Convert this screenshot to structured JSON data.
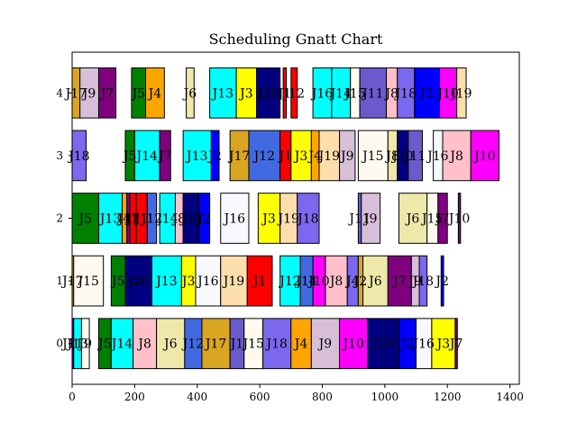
{
  "chart_data": {
    "type": "bar",
    "subtype": "gantt",
    "title": "Scheduling Gnatt Chart",
    "xlabel": "",
    "ylabel": "",
    "xlim": [
      0,
      1430
    ],
    "ylim": [
      -0.65,
      4.65
    ],
    "xticks": [
      0,
      200,
      400,
      600,
      800,
      1000,
      1200,
      1400
    ],
    "yticks": [
      0,
      1,
      2,
      3,
      4
    ],
    "grid": false,
    "legend": "none",
    "colors": {
      "green": "#008000",
      "cyan": "#00ffff",
      "pink": "#ffc0cb",
      "khaki": "#eee8aa",
      "royalblue": "#4169e1",
      "goldenrod": "#daa520",
      "slateblue": "#6a5acd",
      "ivory": "#fffaf0",
      "mediumslateblue": "#7b68ee",
      "orange": "#ffa500",
      "thistle": "#d8bfd8",
      "magenta": "#ff00ff",
      "navy": "#000080",
      "blue": "#0000ff",
      "ghostwhite": "#f8f8ff",
      "yellow": "#ffff00",
      "purple": "#800080",
      "red": "#ff0000",
      "wheat": "#ffdead"
    },
    "tasks": [
      {
        "machine": 0,
        "label": "J11",
        "start": 0,
        "end": 5,
        "color": "#800080"
      },
      {
        "machine": 0,
        "label": "J13",
        "start": 5,
        "end": 30,
        "color": "#00ffff"
      },
      {
        "machine": 0,
        "label": "J9",
        "start": 30,
        "end": 55,
        "color": "#fffaf0"
      },
      {
        "machine": 0,
        "label": "J5",
        "start": 85,
        "end": 125,
        "color": "#008000"
      },
      {
        "machine": 0,
        "label": "J14",
        "start": 125,
        "end": 195,
        "color": "#00ffff"
      },
      {
        "machine": 0,
        "label": "J8",
        "start": 195,
        "end": 270,
        "color": "#ffc0cb"
      },
      {
        "machine": 0,
        "label": "J6",
        "start": 270,
        "end": 360,
        "color": "#eee8aa"
      },
      {
        "machine": 0,
        "label": "J12",
        "start": 360,
        "end": 415,
        "color": "#4169e1"
      },
      {
        "machine": 0,
        "label": "J17",
        "start": 415,
        "end": 505,
        "color": "#daa520"
      },
      {
        "machine": 0,
        "label": "J1",
        "start": 505,
        "end": 550,
        "color": "#6a5acd"
      },
      {
        "machine": 0,
        "label": "J15",
        "start": 550,
        "end": 610,
        "color": "#fffaf0"
      },
      {
        "machine": 0,
        "label": "J18",
        "start": 610,
        "end": 700,
        "color": "#7b68ee"
      },
      {
        "machine": 0,
        "label": "J4",
        "start": 700,
        "end": 765,
        "color": "#ffa500"
      },
      {
        "machine": 0,
        "label": "J9",
        "start": 765,
        "end": 855,
        "color": "#d8bfd8"
      },
      {
        "machine": 0,
        "label": "J10",
        "start": 855,
        "end": 945,
        "color": "#ff00ff"
      },
      {
        "machine": 0,
        "label": "J20",
        "start": 945,
        "end": 1045,
        "color": "#000080"
      },
      {
        "machine": 0,
        "label": "J2",
        "start": 1045,
        "end": 1100,
        "color": "#0000ff"
      },
      {
        "machine": 0,
        "label": "J16",
        "start": 1100,
        "end": 1150,
        "color": "#f8f8ff"
      },
      {
        "machine": 0,
        "label": "J3",
        "start": 1150,
        "end": 1225,
        "color": "#ffff00"
      },
      {
        "machine": 0,
        "label": "J7",
        "start": 1225,
        "end": 1232,
        "color": "#800080"
      },
      {
        "machine": 1,
        "label": "J17",
        "start": 0,
        "end": 5,
        "color": "#daa520"
      },
      {
        "machine": 1,
        "label": "J15",
        "start": 5,
        "end": 100,
        "color": "#fffaf0"
      },
      {
        "machine": 1,
        "label": "J5",
        "start": 125,
        "end": 170,
        "color": "#008000"
      },
      {
        "machine": 1,
        "label": "J20",
        "start": 170,
        "end": 255,
        "color": "#000080"
      },
      {
        "machine": 1,
        "label": "J13",
        "start": 255,
        "end": 350,
        "color": "#00ffff"
      },
      {
        "machine": 1,
        "label": "J3",
        "start": 350,
        "end": 395,
        "color": "#ffff00"
      },
      {
        "machine": 1,
        "label": "J16",
        "start": 395,
        "end": 475,
        "color": "#f8f8ff"
      },
      {
        "machine": 1,
        "label": "J19",
        "start": 475,
        "end": 560,
        "color": "#ffdead"
      },
      {
        "machine": 1,
        "label": "J1",
        "start": 560,
        "end": 640,
        "color": "#ff0000"
      },
      {
        "machine": 1,
        "label": "J12",
        "start": 665,
        "end": 730,
        "color": "#00ffff"
      },
      {
        "machine": 1,
        "label": "J14",
        "start": 730,
        "end": 770,
        "color": "#4169e1"
      },
      {
        "machine": 1,
        "label": "J10",
        "start": 770,
        "end": 810,
        "color": "#ff00ff"
      },
      {
        "machine": 1,
        "label": "J8",
        "start": 810,
        "end": 880,
        "color": "#ffc0cb"
      },
      {
        "machine": 1,
        "label": "J4",
        "start": 880,
        "end": 915,
        "color": "#7b68ee"
      },
      {
        "machine": 1,
        "label": "J2",
        "start": 915,
        "end": 930,
        "color": "#daa520"
      },
      {
        "machine": 1,
        "label": "J6",
        "start": 930,
        "end": 1010,
        "color": "#eee8aa"
      },
      {
        "machine": 1,
        "label": "J7",
        "start": 1010,
        "end": 1085,
        "color": "#800080"
      },
      {
        "machine": 1,
        "label": "J9",
        "start": 1085,
        "end": 1110,
        "color": "#d8bfd8"
      },
      {
        "machine": 1,
        "label": "J18",
        "start": 1110,
        "end": 1135,
        "color": "#7b68ee"
      },
      {
        "machine": 1,
        "label": "J2",
        "start": 1180,
        "end": 1188,
        "color": "#0000ff"
      },
      {
        "machine": 2,
        "label": "J5",
        "start": 0,
        "end": 85,
        "color": "#008000"
      },
      {
        "machine": 2,
        "label": "J13",
        "start": 85,
        "end": 160,
        "color": "#00ffff"
      },
      {
        "machine": 2,
        "label": "J4",
        "start": 160,
        "end": 175,
        "color": "#ffa500"
      },
      {
        "machine": 2,
        "label": "J11",
        "start": 175,
        "end": 185,
        "color": "#800080"
      },
      {
        "machine": 2,
        "label": "J7",
        "start": 185,
        "end": 205,
        "color": "#ff0000"
      },
      {
        "machine": 2,
        "label": "J1",
        "start": 205,
        "end": 240,
        "color": "#ff0000"
      },
      {
        "machine": 2,
        "label": "J12",
        "start": 240,
        "end": 270,
        "color": "#4169e1"
      },
      {
        "machine": 2,
        "label": "J14",
        "start": 280,
        "end": 330,
        "color": "#00ffff"
      },
      {
        "machine": 2,
        "label": "J8",
        "start": 330,
        "end": 355,
        "color": "#ffc0cb"
      },
      {
        "machine": 2,
        "label": "J20",
        "start": 355,
        "end": 405,
        "color": "#000080"
      },
      {
        "machine": 2,
        "label": "J2",
        "start": 405,
        "end": 440,
        "color": "#0000ff"
      },
      {
        "machine": 2,
        "label": "J16",
        "start": 475,
        "end": 565,
        "color": "#f8f8ff"
      },
      {
        "machine": 2,
        "label": "J3",
        "start": 595,
        "end": 665,
        "color": "#ffff00"
      },
      {
        "machine": 2,
        "label": "J19",
        "start": 665,
        "end": 720,
        "color": "#ffdead"
      },
      {
        "machine": 2,
        "label": "J18",
        "start": 720,
        "end": 790,
        "color": "#7b68ee"
      },
      {
        "machine": 2,
        "label": "J11",
        "start": 915,
        "end": 925,
        "color": "#6a5acd"
      },
      {
        "machine": 2,
        "label": "J9",
        "start": 925,
        "end": 985,
        "color": "#d8bfd8"
      },
      {
        "machine": 2,
        "label": "J6",
        "start": 1045,
        "end": 1135,
        "color": "#eee8aa"
      },
      {
        "machine": 2,
        "label": "J15",
        "start": 1135,
        "end": 1170,
        "color": "#fffaf0"
      },
      {
        "machine": 2,
        "label": "J7",
        "start": 1170,
        "end": 1200,
        "color": "#800080"
      },
      {
        "machine": 2,
        "label": "J10",
        "start": 1235,
        "end": 1242,
        "color": "#800080"
      },
      {
        "machine": 3,
        "label": "J18",
        "start": 0,
        "end": 45,
        "color": "#7b68ee"
      },
      {
        "machine": 3,
        "label": "J5",
        "start": 170,
        "end": 200,
        "color": "#008000"
      },
      {
        "machine": 3,
        "label": "J14",
        "start": 200,
        "end": 280,
        "color": "#00ffff"
      },
      {
        "machine": 3,
        "label": "J7",
        "start": 280,
        "end": 315,
        "color": "#800080"
      },
      {
        "machine": 3,
        "label": "J13",
        "start": 355,
        "end": 445,
        "color": "#00ffff"
      },
      {
        "machine": 3,
        "label": "J2",
        "start": 445,
        "end": 470,
        "color": "#0000ff"
      },
      {
        "machine": 3,
        "label": "J17",
        "start": 505,
        "end": 565,
        "color": "#daa520"
      },
      {
        "machine": 3,
        "label": "J12",
        "start": 565,
        "end": 665,
        "color": "#4169e1"
      },
      {
        "machine": 3,
        "label": "J1",
        "start": 665,
        "end": 700,
        "color": "#ff0000"
      },
      {
        "machine": 3,
        "label": "J3",
        "start": 700,
        "end": 765,
        "color": "#ffff00"
      },
      {
        "machine": 3,
        "label": "J4",
        "start": 765,
        "end": 790,
        "color": "#ffa500"
      },
      {
        "machine": 3,
        "label": "J19",
        "start": 790,
        "end": 855,
        "color": "#ffdead"
      },
      {
        "machine": 3,
        "label": "J9",
        "start": 855,
        "end": 905,
        "color": "#d8bfd8"
      },
      {
        "machine": 3,
        "label": "J15",
        "start": 915,
        "end": 1010,
        "color": "#fffaf0"
      },
      {
        "machine": 3,
        "label": "J8",
        "start": 1010,
        "end": 1040,
        "color": "#eee8aa"
      },
      {
        "machine": 3,
        "label": "J20",
        "start": 1040,
        "end": 1075,
        "color": "#000080"
      },
      {
        "machine": 3,
        "label": "J11",
        "start": 1075,
        "end": 1120,
        "color": "#6a5acd"
      },
      {
        "machine": 3,
        "label": "J16",
        "start": 1155,
        "end": 1185,
        "color": "#f8f8ff"
      },
      {
        "machine": 3,
        "label": "J8",
        "start": 1185,
        "end": 1275,
        "color": "#ffc0cb"
      },
      {
        "machine": 3,
        "label": "J10",
        "start": 1275,
        "end": 1365,
        "color": "#ff00ff"
      },
      {
        "machine": 4,
        "label": "J17",
        "start": 0,
        "end": 25,
        "color": "#daa520"
      },
      {
        "machine": 4,
        "label": "J9",
        "start": 25,
        "end": 85,
        "color": "#d8bfd8"
      },
      {
        "machine": 4,
        "label": "J7",
        "start": 85,
        "end": 140,
        "color": "#800080"
      },
      {
        "machine": 4,
        "label": "J5",
        "start": 190,
        "end": 235,
        "color": "#008000"
      },
      {
        "machine": 4,
        "label": "J4",
        "start": 235,
        "end": 295,
        "color": "#ffa500"
      },
      {
        "machine": 4,
        "label": "J6",
        "start": 365,
        "end": 390,
        "color": "#eee8aa"
      },
      {
        "machine": 4,
        "label": "J13",
        "start": 440,
        "end": 525,
        "color": "#00ffff"
      },
      {
        "machine": 4,
        "label": "J3",
        "start": 525,
        "end": 590,
        "color": "#ffff00"
      },
      {
        "machine": 4,
        "label": "J20",
        "start": 590,
        "end": 665,
        "color": "#000080"
      },
      {
        "machine": 4,
        "label": "J1",
        "start": 675,
        "end": 685,
        "color": "#ff0000"
      },
      {
        "machine": 4,
        "label": "J12",
        "start": 700,
        "end": 720,
        "color": "#ff0000"
      },
      {
        "machine": 4,
        "label": "J16",
        "start": 770,
        "end": 830,
        "color": "#00ffff"
      },
      {
        "machine": 4,
        "label": "J14",
        "start": 830,
        "end": 890,
        "color": "#00ffff"
      },
      {
        "machine": 4,
        "label": "J15",
        "start": 890,
        "end": 920,
        "color": "#fffaf0"
      },
      {
        "machine": 4,
        "label": "J11",
        "start": 920,
        "end": 1005,
        "color": "#6a5acd"
      },
      {
        "machine": 4,
        "label": "J8",
        "start": 1005,
        "end": 1040,
        "color": "#ffc0cb"
      },
      {
        "machine": 4,
        "label": "J18",
        "start": 1040,
        "end": 1095,
        "color": "#7b68ee"
      },
      {
        "machine": 4,
        "label": "J2",
        "start": 1095,
        "end": 1175,
        "color": "#0000ff"
      },
      {
        "machine": 4,
        "label": "J10",
        "start": 1175,
        "end": 1230,
        "color": "#ff00ff"
      },
      {
        "machine": 4,
        "label": "J19",
        "start": 1230,
        "end": 1260,
        "color": "#ffdead"
      }
    ]
  }
}
